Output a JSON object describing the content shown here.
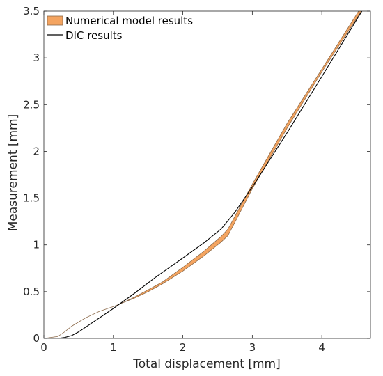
{
  "chart_data": {
    "type": "line",
    "xlabel": "Total displacement [mm]",
    "ylabel": "Measurement [mm]",
    "xlim": [
      0,
      4.7
    ],
    "ylim": [
      0,
      3.5
    ],
    "xticks": [
      "0",
      "1",
      "2",
      "3",
      "4"
    ],
    "yticks": [
      "0",
      "0.5",
      "1",
      "1.5",
      "2",
      "2.5",
      "3",
      "3.5"
    ],
    "grid": false,
    "legend_position": "top-left",
    "series": [
      {
        "name": "Numerical model results",
        "kind": "band",
        "color": "#f4a460",
        "edge_color": "#8c6a4a",
        "x": [
          0.0,
          0.2,
          0.3,
          0.4,
          0.6,
          0.8,
          1.0,
          1.1,
          1.3,
          1.5,
          1.7,
          2.0,
          2.3,
          2.55,
          2.65,
          3.0,
          3.5,
          4.0,
          4.7
        ],
        "y_lower": [
          0.0,
          0.02,
          0.07,
          0.13,
          0.22,
          0.29,
          0.34,
          0.37,
          0.43,
          0.5,
          0.58,
          0.72,
          0.88,
          1.03,
          1.1,
          1.6,
          2.25,
          2.85,
          3.65
        ],
        "y_upper": [
          0.0,
          0.02,
          0.07,
          0.13,
          0.22,
          0.29,
          0.34,
          0.37,
          0.44,
          0.52,
          0.6,
          0.76,
          0.93,
          1.09,
          1.17,
          1.65,
          2.3,
          2.88,
          3.7
        ]
      },
      {
        "name": "DIC results",
        "kind": "line",
        "color": "#000000",
        "x": [
          0.0,
          0.2,
          0.3,
          0.4,
          0.5,
          0.7,
          1.0,
          1.3,
          1.6,
          2.0,
          2.3,
          2.55,
          2.75,
          3.0,
          3.5,
          4.0,
          4.7
        ],
        "y": [
          0.0,
          0.0,
          0.01,
          0.03,
          0.07,
          0.17,
          0.32,
          0.48,
          0.65,
          0.86,
          1.02,
          1.17,
          1.35,
          1.62,
          2.2,
          2.8,
          3.65
        ]
      }
    ]
  }
}
